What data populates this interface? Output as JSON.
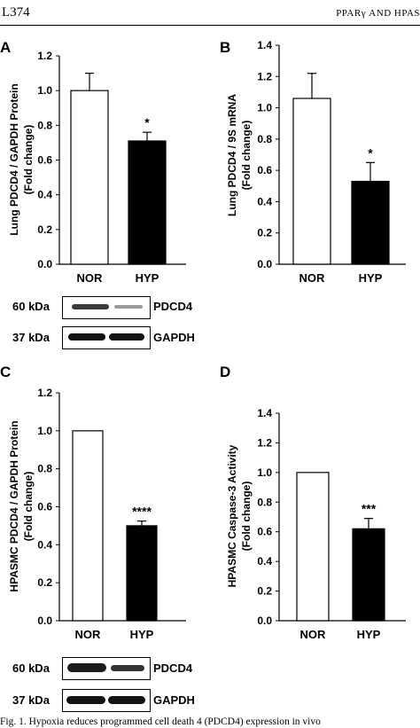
{
  "header": {
    "page_id": "L374",
    "running_title": "PPARγ AND HPAS"
  },
  "caption": "Fig. 1. Hypoxia reduces programmed cell death 4 (PDCD4) expression in vivo",
  "blots": [
    {
      "panel": "A",
      "rows": [
        {
          "mw": "60 kDa",
          "protein": "PDCD4"
        },
        {
          "mw": "37 kDa",
          "protein": "GAPDH"
        }
      ]
    },
    {
      "panel": "C",
      "rows": [
        {
          "mw": "60 kDa",
          "protein": "PDCD4"
        },
        {
          "mw": "37 kDa",
          "protein": "GAPDH"
        }
      ]
    }
  ],
  "colors": {
    "NOR": "#ffffff",
    "HYP": "#000000"
  },
  "chart_data": [
    {
      "panel": "A",
      "type": "bar",
      "categories": [
        "NOR",
        "HYP"
      ],
      "values": [
        1.0,
        0.71
      ],
      "errors": [
        0.1,
        0.05
      ],
      "significance": [
        "",
        "*"
      ],
      "ylabel": "Lung PDCD4 / GAPDH Protein\n(Fold change)",
      "ylim": [
        0,
        1.2
      ],
      "yticks": [
        "0.0",
        "0.2",
        "0.4",
        "0.6",
        "0.8",
        "1.0",
        "1.2"
      ]
    },
    {
      "panel": "B",
      "type": "bar",
      "categories": [
        "NOR",
        "HYP"
      ],
      "values": [
        1.06,
        0.53
      ],
      "errors": [
        0.16,
        0.12
      ],
      "significance": [
        "",
        "*"
      ],
      "ylabel": "Lung PDCD4 / 9S mRNA\n(Fold change)",
      "ylim": [
        0,
        1.4
      ],
      "yticks": [
        "0.0",
        "0.2",
        "0.4",
        "0.6",
        "0.8",
        "1.0",
        "1.2",
        "1.4"
      ]
    },
    {
      "panel": "C",
      "type": "bar",
      "categories": [
        "NOR",
        "HYP"
      ],
      "values": [
        1.0,
        0.5
      ],
      "errors": [
        0.0,
        0.025
      ],
      "significance": [
        "",
        "****"
      ],
      "ylabel": "HPASMC PDCD4 / GAPDH Protein\n(Fold change)",
      "ylim": [
        0,
        1.2
      ],
      "yticks": [
        "0.0",
        "0.2",
        "0.4",
        "0.6",
        "0.8",
        "1.0",
        "1.2"
      ]
    },
    {
      "panel": "D",
      "type": "bar",
      "categories": [
        "NOR",
        "HYP"
      ],
      "values": [
        1.0,
        0.62
      ],
      "errors": [
        0.0,
        0.07
      ],
      "significance": [
        "",
        "***"
      ],
      "ylabel": "HPASMC Caspase-3 Activity\n(Fold change)",
      "ylim": [
        0,
        1.4
      ],
      "yticks": [
        "0.0",
        "0.2",
        "0.4",
        "0.6",
        "0.8",
        "1.0",
        "1.2",
        "1.4"
      ]
    }
  ]
}
